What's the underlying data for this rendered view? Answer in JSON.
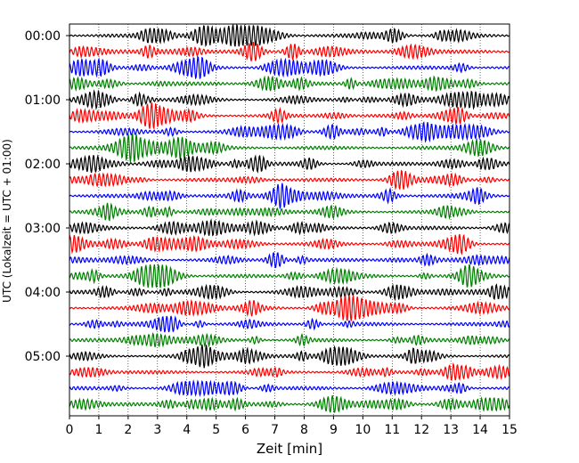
{
  "chart_data": {
    "type": "line",
    "xlabel": "Zeit  [min]",
    "ylabel": "UTC (Lokalzeit = UTC + 01:00)",
    "xlim": [
      0,
      15
    ],
    "x_ticks": [
      "0",
      "1",
      "2",
      "3",
      "4",
      "5",
      "6",
      "7",
      "8",
      "9",
      "10",
      "11",
      "12",
      "13",
      "14",
      "15"
    ],
    "y_ticks": [
      "00:00",
      "01:00",
      "02:00",
      "03:00",
      "04:00",
      "05:00"
    ],
    "traces_per_hour": 4,
    "trace_count": 24,
    "trace_colors": [
      "#000000",
      "#ff0000",
      "#0000ff",
      "#008000"
    ],
    "vertical_grid": true,
    "grid_style": "dotted"
  }
}
